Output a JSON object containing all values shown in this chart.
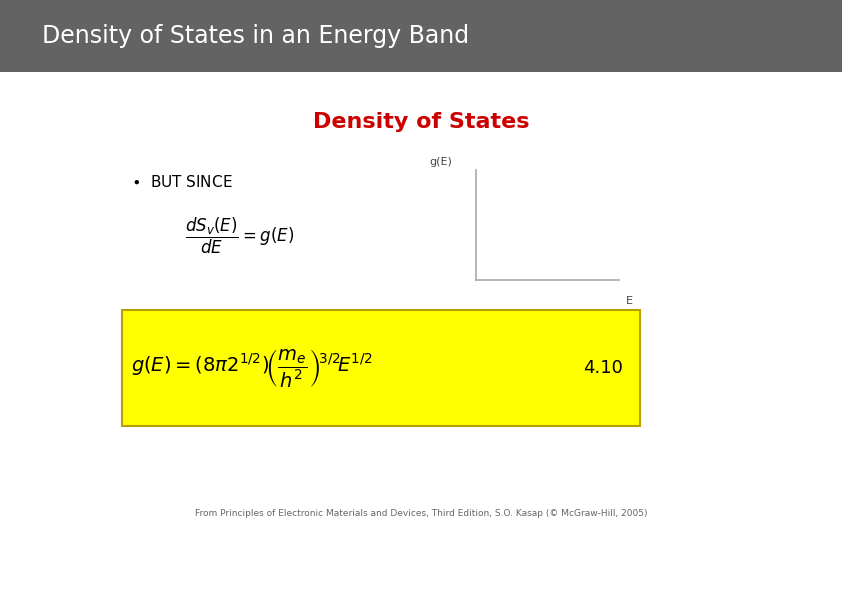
{
  "title": "Density of States in an Energy Band",
  "title_bg_color": "#636363",
  "title_text_color": "#ffffff",
  "title_fontsize": 17,
  "subtitle": "Density of States",
  "subtitle_color": "#cc0000",
  "subtitle_fontsize": 16,
  "bullet_fontsize": 11,
  "formula_fontsize": 11,
  "equation_number": "4.10",
  "ylabel_graph": "g(E)",
  "xlabel_graph": "E",
  "box_bg_color": "#ffff00",
  "box_edge_color": "#b8a000",
  "footnote": "From Principles of Electronic Materials and Devices, Third Edition, S.O. Kasap (© McGraw-Hill, 2005)",
  "footnote_fontsize": 6.5,
  "bg_color": "#ffffff",
  "graph_line_color": "#aaaaaa"
}
